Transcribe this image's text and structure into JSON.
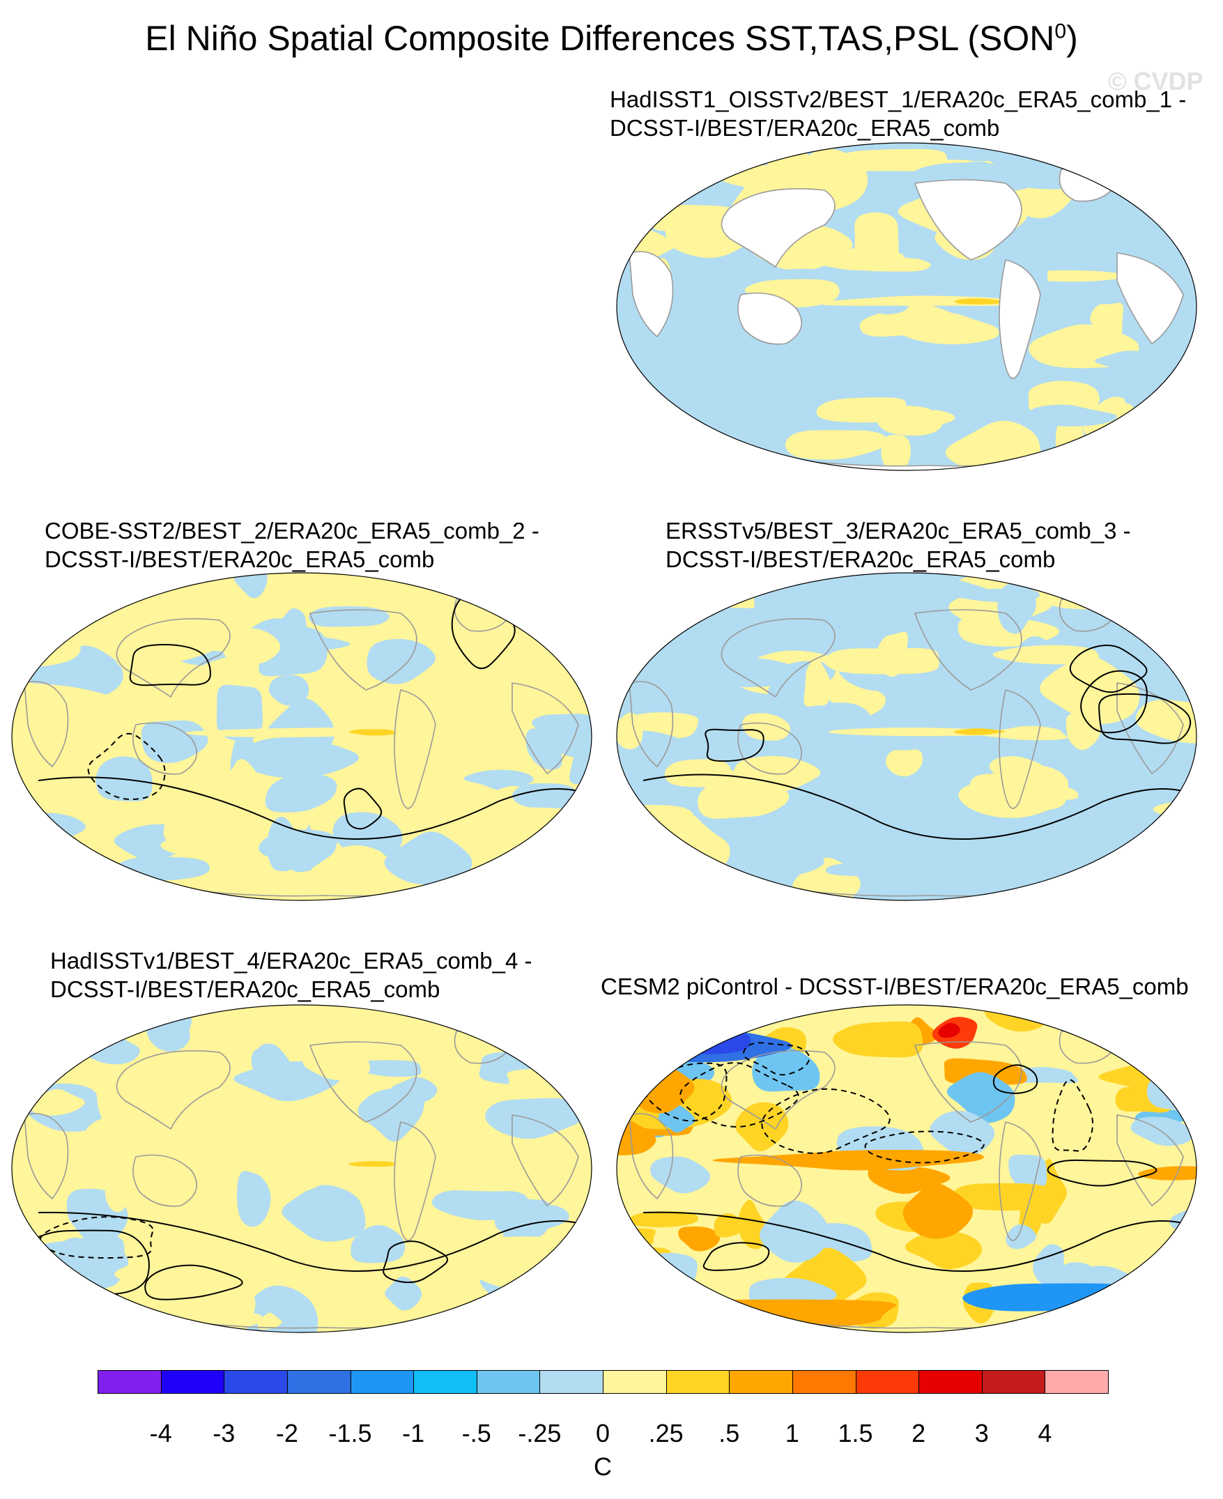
{
  "title": "El Niño Spatial Composite Differences SST,TAS,PSL (SON",
  "title_superscript": "0",
  "title_suffix": ")",
  "watermark": "© CVDP",
  "panels": [
    {
      "line1": "HadISST1_OISSTv2/BEST_1/ERA20c_ERA5_comb_1 -",
      "line2": "DCSST-I/BEST/ERA20c_ERA5_comb",
      "style": "weak_no_land"
    },
    {
      "line1": "COBE-SST2/BEST_2/ERA20c_ERA5_comb_2 -",
      "line2": "DCSST-I/BEST/ERA20c_ERA5_comb",
      "style": "weak"
    },
    {
      "line1": "ERSSTv5/BEST_3/ERA20c_ERA5_comb_3 -",
      "line2": "DCSST-I/BEST/ERA20c_ERA5_comb",
      "style": "weak"
    },
    {
      "line1": "HadISSTv1/BEST_4/ERA20c_ERA5_comb_4 -",
      "line2": "DCSST-I/BEST/ERA20c_ERA5_comb",
      "style": "weak"
    },
    {
      "line1": "CESM2 piControl - DCSST-I/BEST/ERA20c_ERA5_comb",
      "line2": "",
      "style": "strong"
    }
  ],
  "colorbar": {
    "colors": [
      "#7f1ff0",
      "#1f00fb",
      "#2b48e9",
      "#2f70e4",
      "#1f96f5",
      "#10bff5",
      "#6fc5f1",
      "#b2dcf1",
      "#fff59a",
      "#ffd425",
      "#ffa601",
      "#ff7800",
      "#ff3a09",
      "#e60000",
      "#c41b1c",
      "#ffabab"
    ],
    "labels": [
      "-4",
      "-3",
      "-2",
      "-1.5",
      "-1",
      "-.5",
      "-.25",
      "0",
      ".25",
      ".5",
      "1",
      "1.5",
      "2",
      "3",
      "4"
    ],
    "unit": "C"
  }
}
